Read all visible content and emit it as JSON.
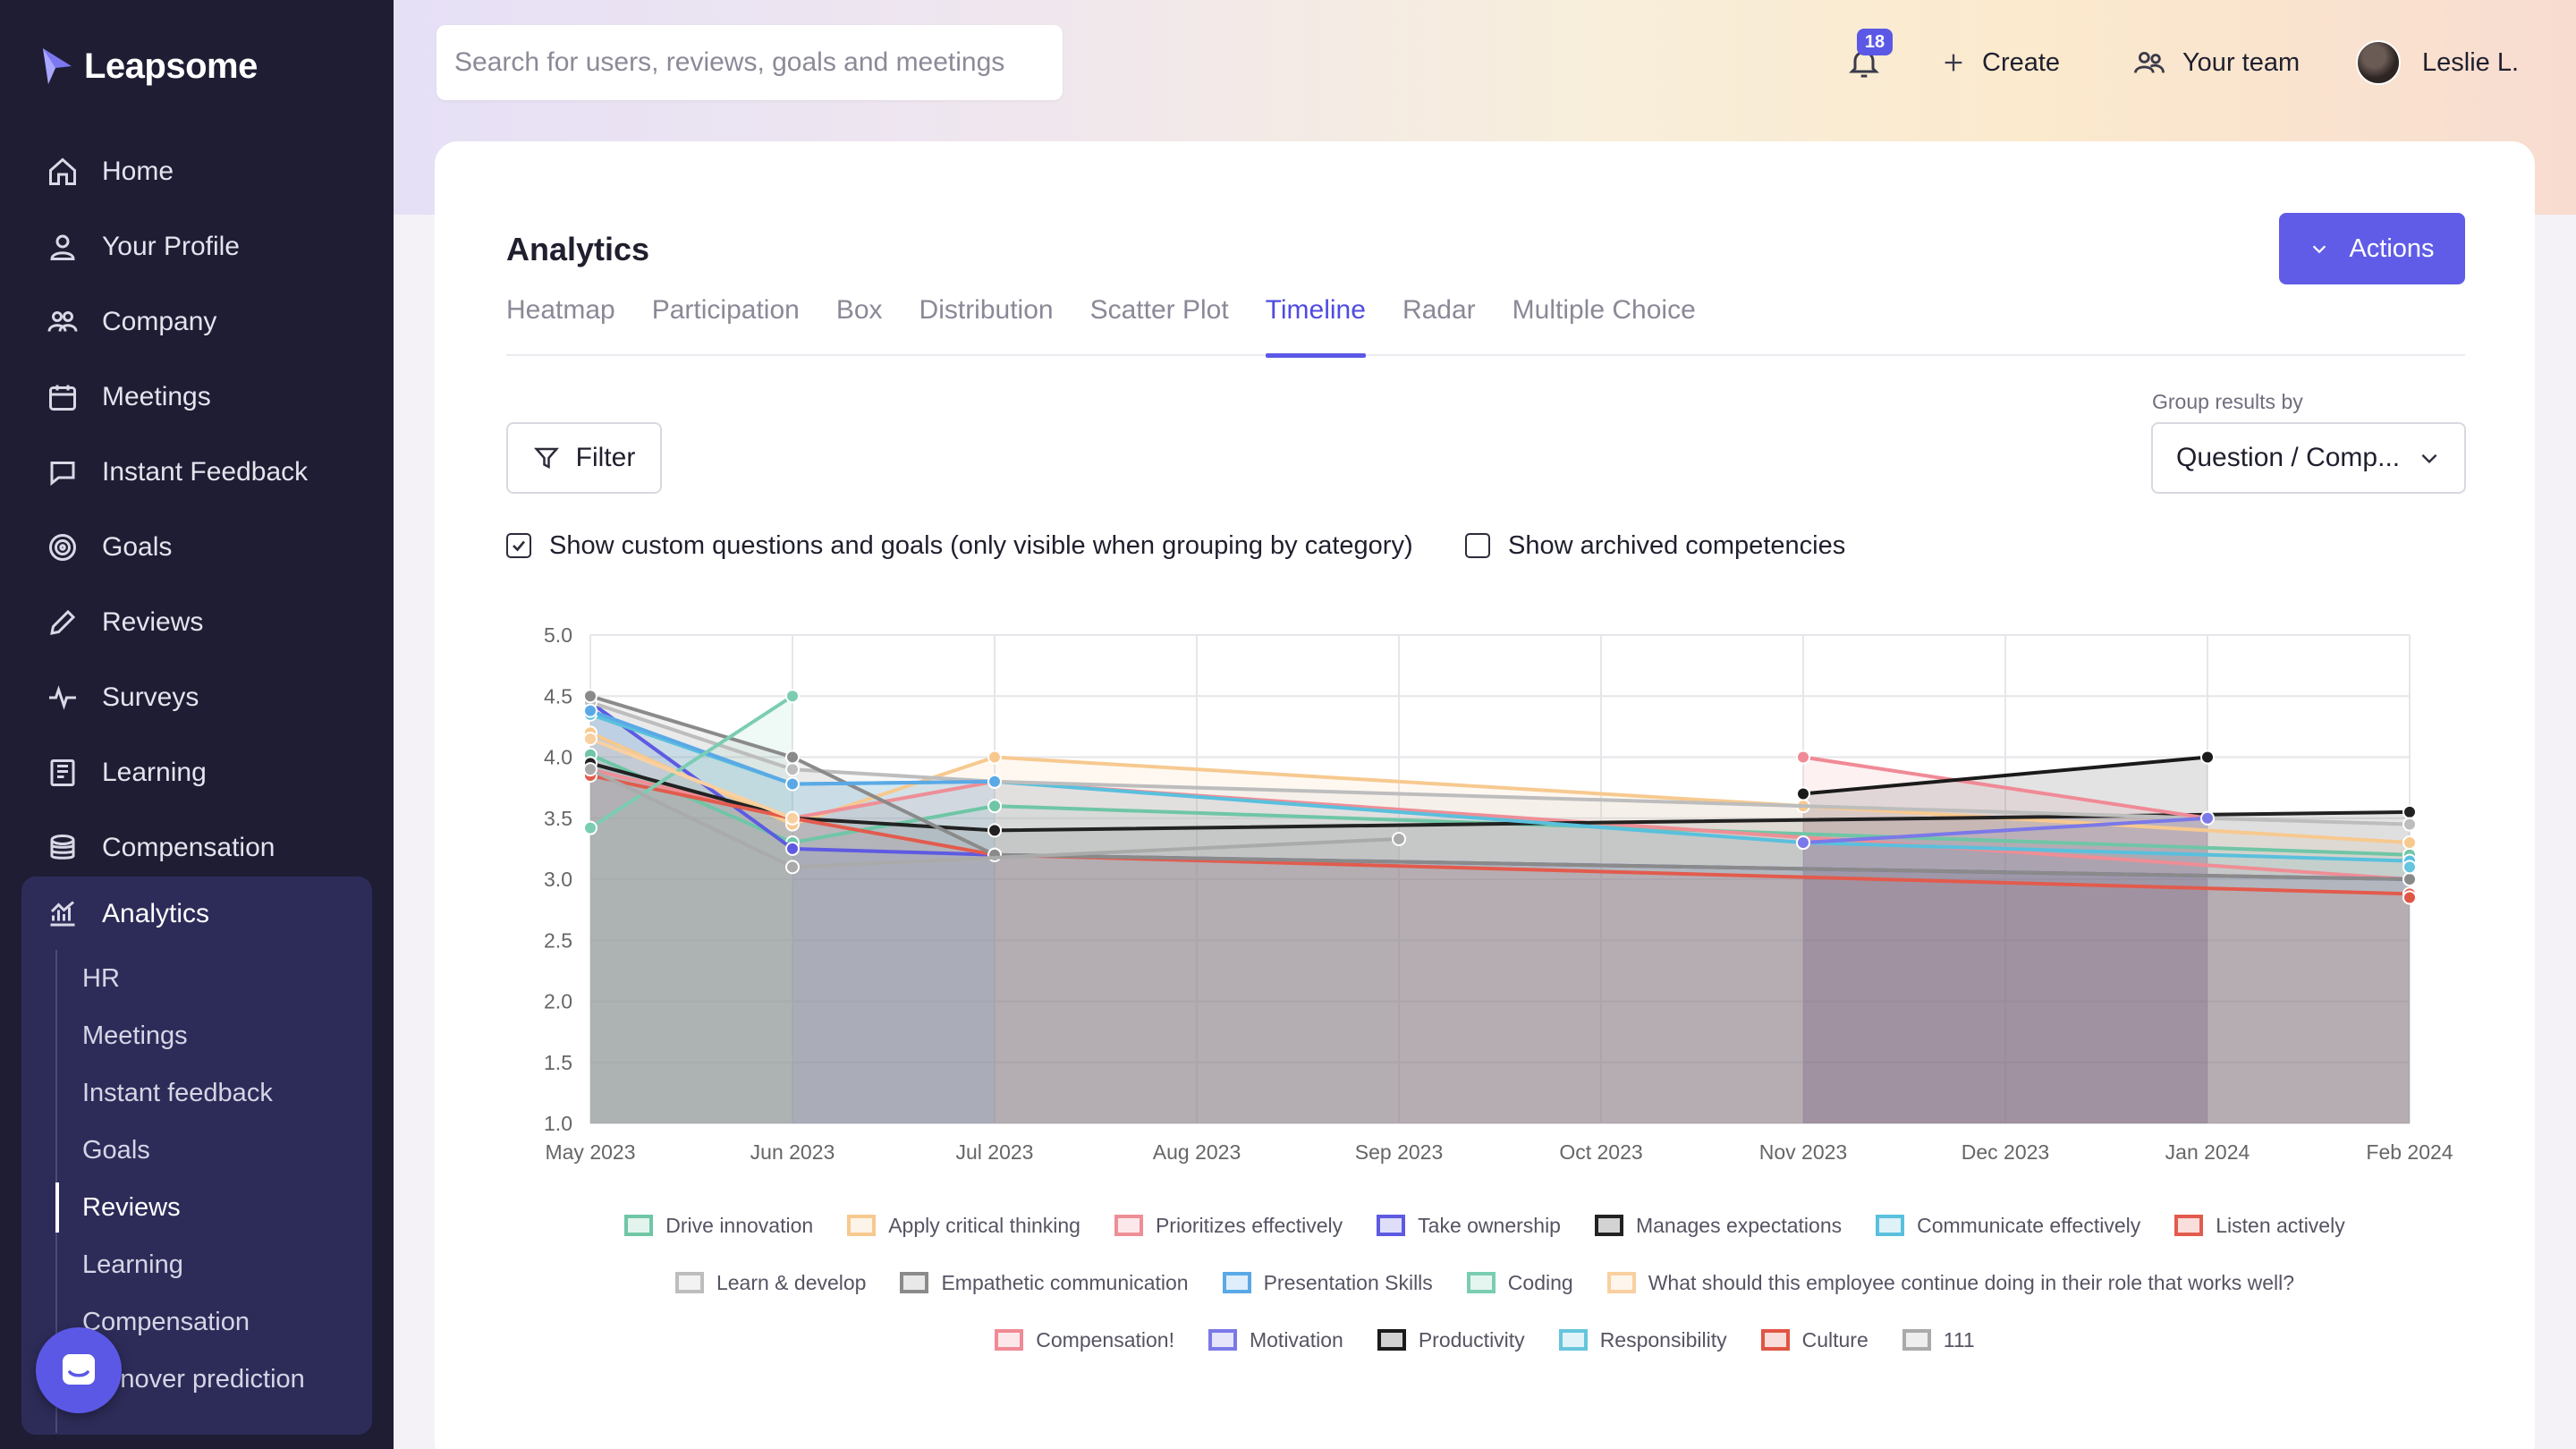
{
  "brand": {
    "name": "Leapsome"
  },
  "sidebar": {
    "items": [
      {
        "label": "Home",
        "icon": "home-icon"
      },
      {
        "label": "Your Profile",
        "icon": "user-icon"
      },
      {
        "label": "Company",
        "icon": "users-icon"
      },
      {
        "label": "Meetings",
        "icon": "calendar-icon"
      },
      {
        "label": "Instant Feedback",
        "icon": "chat-icon"
      },
      {
        "label": "Goals",
        "icon": "target-icon"
      },
      {
        "label": "Reviews",
        "icon": "pencil-icon"
      },
      {
        "label": "Surveys",
        "icon": "pulse-icon"
      },
      {
        "label": "Learning",
        "icon": "book-icon"
      },
      {
        "label": "Compensation",
        "icon": "coins-icon"
      }
    ],
    "analytics": {
      "label": "Analytics",
      "sub_items": [
        {
          "label": "HR",
          "active": false
        },
        {
          "label": "Meetings",
          "active": false
        },
        {
          "label": "Instant feedback",
          "active": false
        },
        {
          "label": "Goals",
          "active": false
        },
        {
          "label": "Reviews",
          "active": true
        },
        {
          "label": "Learning",
          "active": false
        },
        {
          "label": "Compensation",
          "active": false
        },
        {
          "label": "Turnover prediction",
          "active": false
        }
      ]
    }
  },
  "topbar": {
    "search_placeholder": "Search for users, reviews, goals and meetings",
    "notification_count": "18",
    "create_label": "Create",
    "team_label": "Your team",
    "user_name": "Leslie L."
  },
  "page": {
    "title": "Analytics",
    "actions_label": "Actions",
    "tabs": [
      "Heatmap",
      "Participation",
      "Box",
      "Distribution",
      "Scatter Plot",
      "Timeline",
      "Radar",
      "Multiple Choice"
    ],
    "active_tab": "Timeline",
    "filter_label": "Filter",
    "group_by_label": "Group results by",
    "group_by_value": "Question / Comp...",
    "show_custom_label": "Show custom questions and goals (only visible when grouping by category)",
    "show_custom_checked": true,
    "show_archived_label": "Show archived competencies",
    "show_archived_checked": false
  },
  "colors": {
    "accent": "#5b58e6",
    "sidebar": "#1e1d33",
    "sidebar_active": "#2d2c59"
  },
  "chart_data": {
    "type": "line",
    "x": [
      "May 2023",
      "Jun 2023",
      "Jul 2023",
      "Aug 2023",
      "Sep 2023",
      "Oct 2023",
      "Nov 2023",
      "Dec 2023",
      "Jan 2024",
      "Feb 2024"
    ],
    "ylim": [
      1.0,
      5.0
    ],
    "yticks": [
      "5.0",
      "4.5",
      "4.0",
      "3.5",
      "3.0",
      "2.5",
      "2.0",
      "1.5",
      "1.0"
    ],
    "grid": true,
    "fill": true,
    "legend_position": "bottom",
    "series": [
      {
        "name": "Drive innovation",
        "color": "#6fc6a6",
        "points": [
          [
            0,
            4.02
          ],
          [
            1,
            3.3
          ],
          [
            2,
            3.6
          ],
          [
            9,
            3.2
          ]
        ]
      },
      {
        "name": "Apply critical thinking",
        "color": "#f7c98f",
        "points": [
          [
            0,
            4.2
          ],
          [
            1,
            3.45
          ],
          [
            2,
            4.0
          ],
          [
            6,
            3.6
          ],
          [
            9,
            3.3
          ]
        ]
      },
      {
        "name": "Prioritizes effectively",
        "color": "#ee8e96",
        "points": [
          [
            0,
            3.9
          ],
          [
            1,
            3.5
          ],
          [
            2,
            3.8
          ],
          [
            9,
            3.0
          ]
        ]
      },
      {
        "name": "Take ownership",
        "color": "#5e5ae2",
        "points": [
          [
            0,
            4.45
          ],
          [
            1,
            3.25
          ],
          [
            2,
            3.2
          ],
          [
            9,
            3.0
          ]
        ]
      },
      {
        "name": "Manages expectations",
        "color": "#222222",
        "points": [
          [
            0,
            3.95
          ],
          [
            1,
            3.5
          ],
          [
            2,
            3.4
          ],
          [
            9,
            3.55
          ]
        ]
      },
      {
        "name": "Communicate effectively",
        "color": "#59c0dd",
        "points": [
          [
            0,
            4.35
          ],
          [
            1,
            3.78
          ],
          [
            2,
            3.8
          ],
          [
            6,
            3.3
          ],
          [
            9,
            3.15
          ]
        ]
      },
      {
        "name": "Listen actively",
        "color": "#e25b4d",
        "points": [
          [
            0,
            3.85
          ],
          [
            1,
            3.5
          ],
          [
            2,
            3.2
          ],
          [
            9,
            2.88
          ]
        ]
      },
      {
        "name": "Learn & develop",
        "color": "#bdbdbd",
        "points": [
          [
            0,
            4.45
          ],
          [
            1,
            3.9
          ],
          [
            2,
            3.8
          ],
          [
            9,
            3.45
          ]
        ]
      },
      {
        "name": "Empathetic communication",
        "color": "#8a8a8a",
        "points": [
          [
            0,
            4.5
          ],
          [
            1,
            4.0
          ],
          [
            2,
            3.2
          ],
          [
            9,
            3.0
          ]
        ]
      },
      {
        "name": "Presentation Skills",
        "color": "#5aa9e6",
        "points": [
          [
            0,
            4.38
          ],
          [
            1,
            3.78
          ],
          [
            2,
            3.8
          ]
        ]
      },
      {
        "name": "Coding",
        "color": "#7bcdb2",
        "points": [
          [
            0,
            3.42
          ],
          [
            1,
            4.5
          ]
        ]
      },
      {
        "name": "What should this employee continue doing in their role that works well?",
        "color": "#f9d0a0",
        "points": [
          [
            0,
            4.15
          ],
          [
            1,
            3.5
          ]
        ]
      },
      {
        "name": "Compensation!",
        "color": "#f08a96",
        "points": [
          [
            6,
            4.0
          ],
          [
            8,
            3.5
          ]
        ]
      },
      {
        "name": "Motivation",
        "color": "#7b78e8",
        "points": [
          [
            6,
            3.3
          ],
          [
            8,
            3.5
          ]
        ]
      },
      {
        "name": "Productivity",
        "color": "#1a1a1a",
        "points": [
          [
            6,
            3.7
          ],
          [
            8,
            4.0
          ]
        ]
      },
      {
        "name": "Responsibility",
        "color": "#66c5dd",
        "points": [
          [
            9,
            3.1
          ]
        ]
      },
      {
        "name": "Culture",
        "color": "#e05545",
        "points": [
          [
            9,
            2.85
          ]
        ]
      },
      {
        "name": "111",
        "color": "#aaaaaa",
        "points": [
          [
            0,
            3.9
          ],
          [
            1,
            3.1
          ],
          [
            4,
            3.33
          ]
        ]
      }
    ]
  }
}
